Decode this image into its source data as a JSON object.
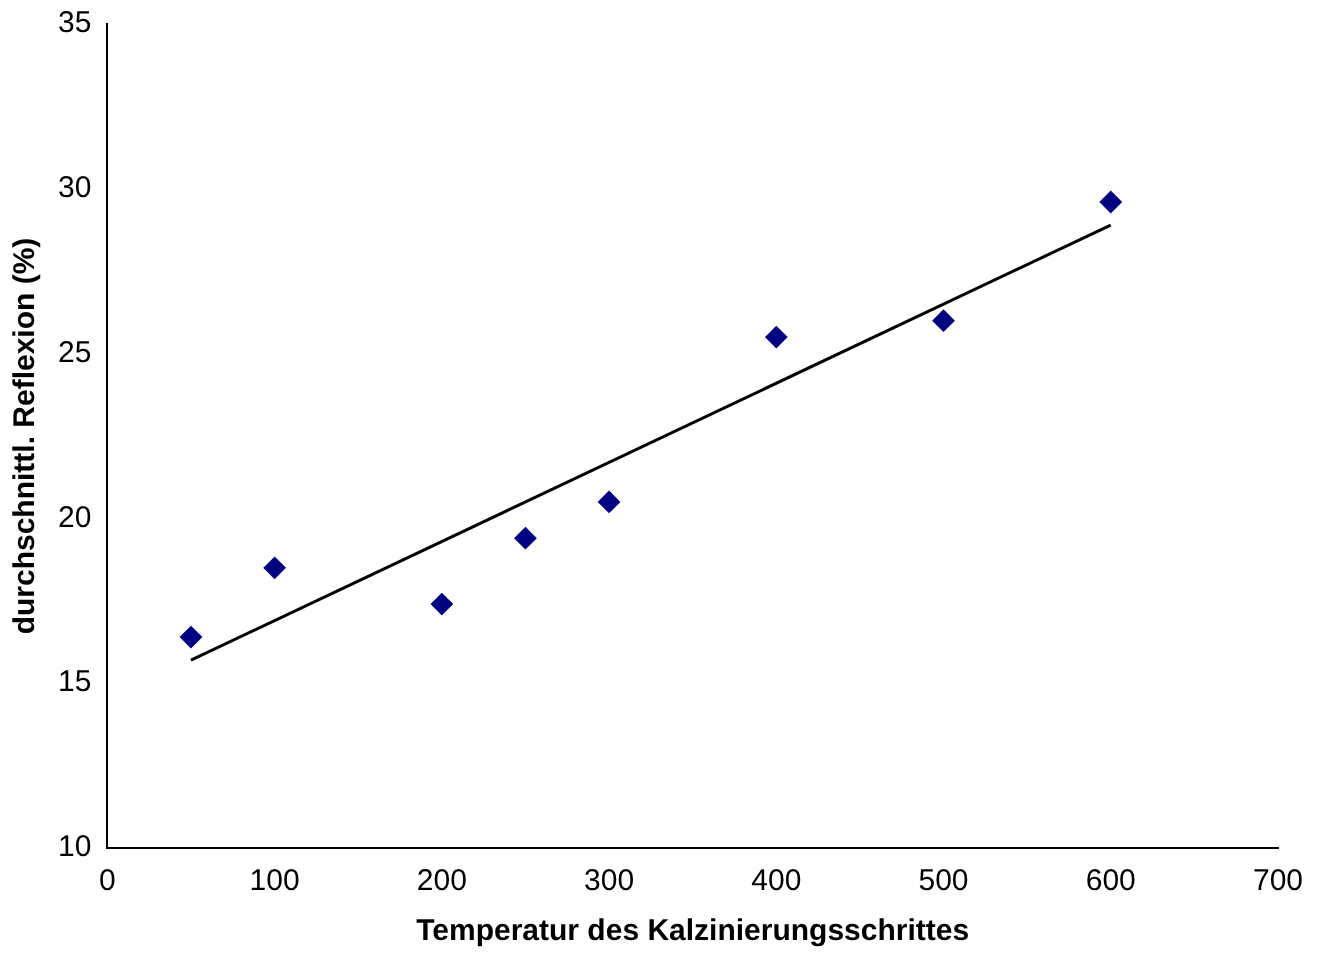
{
  "chart_data": {
    "type": "scatter",
    "xlabel": "Temperatur des Kalzinierungsschrittes",
    "ylabel": "durchschnittl. Reflexion (%)",
    "series": [
      {
        "color": "#000080",
        "marker": "diamond",
        "x": [
          50,
          100,
          200,
          250,
          300,
          400,
          500,
          600
        ],
        "values": [
          16.4,
          18.5,
          17.4,
          19.4,
          20.5,
          25.5,
          26,
          29.6
        ]
      },
      {
        "type": "line",
        "color": "#000000",
        "marker": "none",
        "x": [
          50,
          600
        ],
        "values": [
          15.7,
          28.9
        ]
      }
    ],
    "xlim": [
      0,
      700
    ],
    "xticks": [
      0,
      100,
      200,
      300,
      400,
      500,
      600,
      700
    ],
    "ylim": [
      10,
      35
    ],
    "yticks": [
      10,
      15,
      20,
      25,
      30,
      35
    ],
    "grid": false,
    "legend": false
  }
}
